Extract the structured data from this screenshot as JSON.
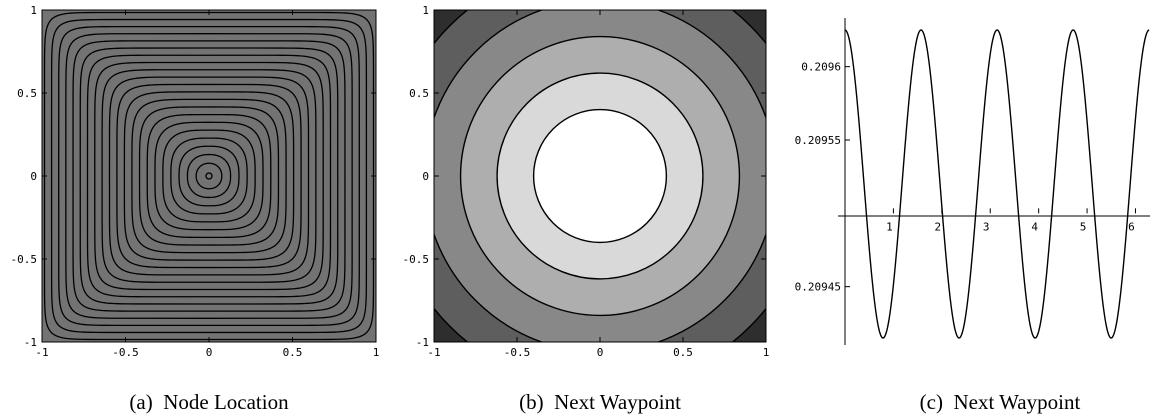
{
  "chart_data": [
    {
      "type": "contour",
      "xlim": [
        -1,
        1
      ],
      "ylim": [
        -1,
        1
      ],
      "xticks": [
        "-1",
        "-0.5",
        "0",
        "0.5",
        "1"
      ],
      "yticks": [
        "-1",
        "-0.5",
        "0",
        "0.5",
        "1"
      ],
      "contour_shape": "superellipse",
      "contour_levels": 22,
      "fill_color": "#737373",
      "caption": "(a)  Node Location"
    },
    {
      "type": "contour",
      "xlim": [
        -1,
        1
      ],
      "ylim": [
        -1,
        1
      ],
      "xticks": [
        "-1",
        "-0.5",
        "0",
        "0.5",
        "1"
      ],
      "yticks": [
        "-1",
        "-0.5",
        "0",
        "0.5",
        "1"
      ],
      "contour_shape": "circle",
      "contour_radii": [
        0.4,
        0.62,
        0.84,
        1.06,
        1.28
      ],
      "band_colors": [
        "#ffffff",
        "#d9d9d9",
        "#aeaeae",
        "#888888",
        "#5e5e5e",
        "#2e2e2e"
      ],
      "caption": "(b)  Next Waypoint"
    },
    {
      "type": "line",
      "xlim": [
        -0.1,
        6.3
      ],
      "ylim": [
        0.2094,
        0.20963
      ],
      "x_axis_crossing": 0.2095,
      "xticks": [
        "1",
        "2",
        "3",
        "4",
        "5",
        "6"
      ],
      "yticks": [
        "0.2096",
        "0.20955",
        "0.20945"
      ],
      "ytick_values": [
        0.2096,
        0.20955,
        0.20945
      ],
      "series": [
        {
          "function": "0.20952 + 0.000105*cos(4x)",
          "x_range": [
            0,
            6.2832
          ],
          "mean": 0.20952,
          "amplitude": 0.000105,
          "frequency": 4
        }
      ],
      "caption": "(c)  Next Waypoint"
    }
  ]
}
